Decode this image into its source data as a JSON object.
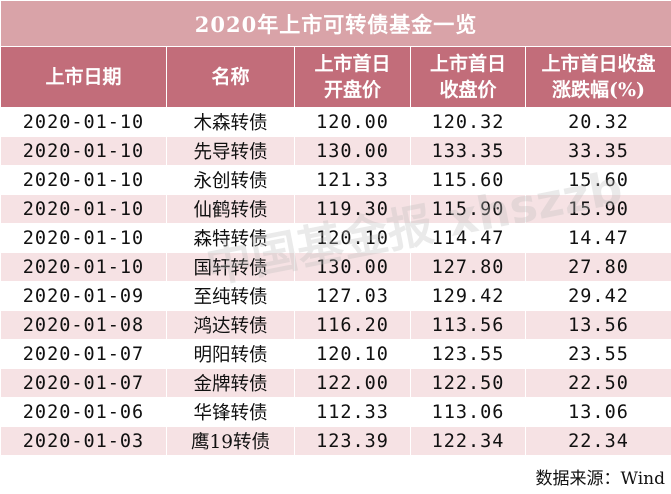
{
  "table": {
    "title": "2020年上市可转债基金一览",
    "headers": {
      "col1": "上市日期",
      "col2": "名称",
      "col3_line1": "上市首日",
      "col3_line2": "开盘价",
      "col4_line1": "上市首日",
      "col4_line2": "收盘价",
      "col5_line1": "上市首日收盘",
      "col5_line2": "涨跌幅(%)"
    },
    "rows": [
      [
        "2020-01-10",
        "木森转债",
        "120.00",
        "120.32",
        "20.32"
      ],
      [
        "2020-01-10",
        "先导转债",
        "130.00",
        "133.35",
        "33.35"
      ],
      [
        "2020-01-10",
        "永创转债",
        "121.33",
        "115.60",
        "15.60"
      ],
      [
        "2020-01-10",
        "仙鹤转债",
        "119.30",
        "115.90",
        "15.90"
      ],
      [
        "2020-01-10",
        "森特转债",
        "120.10",
        "114.47",
        "14.47"
      ],
      [
        "2020-01-10",
        "国轩转债",
        "130.00",
        "127.80",
        "27.80"
      ],
      [
        "2020-01-09",
        "至纯转债",
        "127.03",
        "129.42",
        "29.42"
      ],
      [
        "2020-01-08",
        "鸿达转债",
        "116.20",
        "113.56",
        "13.56"
      ],
      [
        "2020-01-07",
        "明阳转债",
        "120.10",
        "123.55",
        "23.55"
      ],
      [
        "2020-01-07",
        "金牌转债",
        "122.00",
        "122.50",
        "22.50"
      ],
      [
        "2020-01-06",
        "华锋转债",
        "112.33",
        "113.06",
        "13.06"
      ],
      [
        "2020-01-03",
        "鹰19转债",
        "123.39",
        "122.34",
        "22.34"
      ]
    ],
    "source": "数据来源：Wind"
  },
  "watermark": "中国基金报 xhszzb",
  "colors": {
    "title_bg": "#d9a3a8",
    "header_bg": "#c26d7a",
    "stripe_bg": "#f6e2e4"
  }
}
